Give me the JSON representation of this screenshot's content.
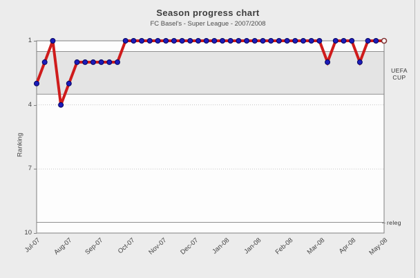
{
  "chart_data": {
    "type": "line",
    "title": "Season progress chart",
    "subtitle": "FC Basel's - Super League - 2007/2008",
    "ylabel": "Ranking",
    "xlabel": "",
    "y_axis": {
      "ticks": [
        1,
        4,
        7,
        10
      ],
      "range": [
        1,
        10
      ],
      "inverted": true
    },
    "x_tick_labels": [
      "Jul-07",
      "Aug-07",
      "Sep-07",
      "Oct-07",
      "Nov-07",
      "Dec-07",
      "Jan-08",
      "Jan-08",
      "Feb-08",
      "Mar-08",
      "Apr-08",
      "May-08"
    ],
    "series": [
      {
        "name": "ranking",
        "values": [
          3,
          2,
          1,
          4,
          3,
          2,
          2,
          2,
          2,
          2,
          2,
          1,
          1,
          1,
          1,
          1,
          1,
          1,
          1,
          1,
          1,
          1,
          1,
          1,
          1,
          1,
          1,
          1,
          1,
          1,
          1,
          1,
          1,
          1,
          1,
          1,
          2,
          1,
          1,
          1,
          2,
          1,
          1,
          1
        ],
        "last_point_open": true
      }
    ],
    "zones": {
      "uefa_cup": {
        "label_lines": [
          "UEFA",
          "CUP"
        ],
        "from_rank": 1.5,
        "to_rank": 3.5
      },
      "relegation": {
        "label": "releg",
        "at_rank": 9.5
      }
    },
    "gridlines": {
      "solid_at_rank": [
        1
      ],
      "dotted_at_rank": [
        4,
        7
      ]
    },
    "legend": "none",
    "colors": {
      "line": "#cf1b1b",
      "marker": "#1c1cba",
      "marker_edge": "#050560",
      "open_marker_ring": "#803333",
      "open_marker_fill": "#ffffff",
      "band": "#e4e4e4",
      "plot_bg": "#fdfdfd",
      "frame": "#808080",
      "grid_dotted": "#c4c4c4",
      "page_bg": "#ececec",
      "text": "#454545"
    }
  }
}
